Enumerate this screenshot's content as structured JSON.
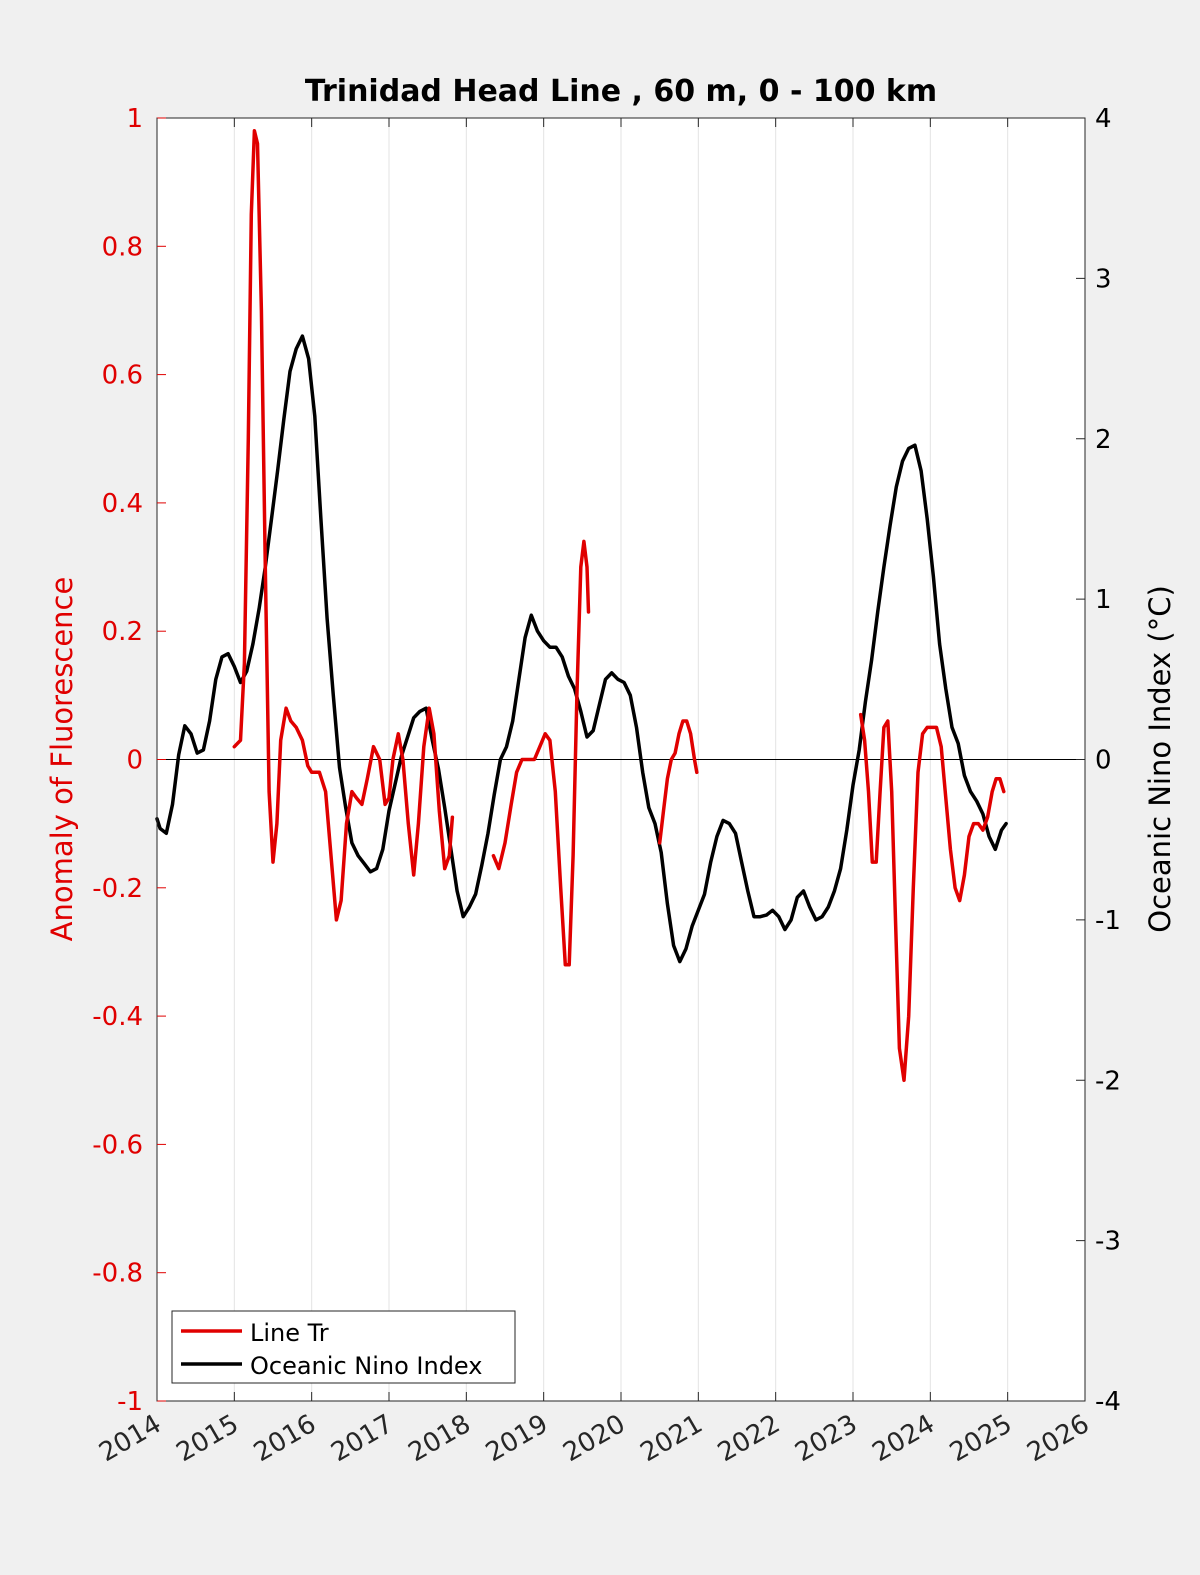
{
  "chart_data": {
    "type": "line",
    "title": "Trinidad Head Line , 60 m, 0 - 100 km",
    "ylabel_left": "Anomaly of Fluorescence",
    "ylabel_right": "Oceanic Nino Index (°C)",
    "xlim": [
      2014,
      2026
    ],
    "ylim_left": [
      -1,
      1
    ],
    "ylim_right": [
      -4,
      4
    ],
    "x_ticks": [
      "2014",
      "2015",
      "2016",
      "2017",
      "2018",
      "2019",
      "2020",
      "2021",
      "2022",
      "2023",
      "2024",
      "2025",
      "2026"
    ],
    "y_ticks_left": [
      "-1",
      "-0.8",
      "-0.6",
      "-0.4",
      "-0.2",
      "0",
      "0.2",
      "0.4",
      "0.6",
      "0.8",
      "1"
    ],
    "y_ticks_right": [
      "-4",
      "-3",
      "-2",
      "-1",
      "0",
      "1",
      "2",
      "3",
      "4"
    ],
    "x_grid": true,
    "zero_line": true,
    "legend_position": "bottom-left",
    "colors": {
      "line_tr": "#e00000",
      "oni": "#000000",
      "left_axis": "#e00000",
      "right_axis": "#000000"
    },
    "series": [
      {
        "name": "Line Tr",
        "axis": "left",
        "color": "#e00000",
        "segments": [
          [
            [
              2015.0,
              0.02
            ],
            [
              2015.08,
              0.03
            ],
            [
              2015.13,
              0.15
            ],
            [
              2015.18,
              0.5
            ],
            [
              2015.22,
              0.85
            ],
            [
              2015.26,
              0.98
            ],
            [
              2015.3,
              0.96
            ],
            [
              2015.35,
              0.7
            ],
            [
              2015.4,
              0.3
            ],
            [
              2015.45,
              -0.05
            ],
            [
              2015.5,
              -0.16
            ],
            [
              2015.55,
              -0.1
            ],
            [
              2015.6,
              0.03
            ],
            [
              2015.67,
              0.08
            ],
            [
              2015.73,
              0.06
            ],
            [
              2015.8,
              0.05
            ],
            [
              2015.88,
              0.03
            ],
            [
              2015.95,
              -0.01
            ],
            [
              2016.0,
              -0.02
            ],
            [
              2016.1,
              -0.02
            ],
            [
              2016.18,
              -0.05
            ],
            [
              2016.25,
              -0.15
            ],
            [
              2016.32,
              -0.25
            ],
            [
              2016.38,
              -0.22
            ],
            [
              2016.45,
              -0.1
            ],
            [
              2016.52,
              -0.05
            ],
            [
              2016.58,
              -0.06
            ],
            [
              2016.65,
              -0.07
            ],
            [
              2016.72,
              -0.03
            ],
            [
              2016.8,
              0.02
            ],
            [
              2016.88,
              0.0
            ],
            [
              2016.95,
              -0.07
            ],
            [
              2017.0,
              -0.06
            ],
            [
              2017.05,
              0.0
            ],
            [
              2017.12,
              0.04
            ],
            [
              2017.18,
              0.0
            ],
            [
              2017.25,
              -0.1
            ],
            [
              2017.32,
              -0.18
            ],
            [
              2017.38,
              -0.1
            ],
            [
              2017.45,
              0.02
            ],
            [
              2017.52,
              0.08
            ],
            [
              2017.58,
              0.04
            ],
            [
              2017.65,
              -0.08
            ],
            [
              2017.72,
              -0.17
            ],
            [
              2017.78,
              -0.15
            ],
            [
              2017.82,
              -0.09
            ]
          ],
          [
            [
              2018.35,
              -0.15
            ],
            [
              2018.42,
              -0.17
            ],
            [
              2018.5,
              -0.13
            ],
            [
              2018.58,
              -0.07
            ],
            [
              2018.65,
              -0.02
            ],
            [
              2018.72,
              0.0
            ],
            [
              2018.8,
              0.0
            ],
            [
              2018.88,
              0.0
            ],
            [
              2018.95,
              0.02
            ],
            [
              2019.02,
              0.04
            ],
            [
              2019.08,
              0.03
            ],
            [
              2019.15,
              -0.05
            ],
            [
              2019.22,
              -0.2
            ],
            [
              2019.28,
              -0.32
            ],
            [
              2019.33,
              -0.32
            ],
            [
              2019.38,
              -0.15
            ],
            [
              2019.43,
              0.1
            ],
            [
              2019.48,
              0.3
            ],
            [
              2019.52,
              0.34
            ],
            [
              2019.56,
              0.3
            ],
            [
              2019.58,
              0.23
            ]
          ],
          [
            [
              2020.5,
              -0.13
            ],
            [
              2020.55,
              -0.08
            ],
            [
              2020.6,
              -0.03
            ],
            [
              2020.65,
              0.0
            ],
            [
              2020.7,
              0.01
            ],
            [
              2020.75,
              0.04
            ],
            [
              2020.8,
              0.06
            ],
            [
              2020.85,
              0.06
            ],
            [
              2020.9,
              0.04
            ],
            [
              2020.95,
              0.0
            ],
            [
              2020.98,
              -0.02
            ]
          ],
          [
            [
              2023.1,
              0.07
            ],
            [
              2023.15,
              0.03
            ],
            [
              2023.2,
              -0.05
            ],
            [
              2023.25,
              -0.16
            ],
            [
              2023.3,
              -0.16
            ],
            [
              2023.35,
              -0.05
            ],
            [
              2023.4,
              0.05
            ],
            [
              2023.45,
              0.06
            ],
            [
              2023.5,
              -0.05
            ],
            [
              2023.55,
              -0.25
            ],
            [
              2023.6,
              -0.45
            ],
            [
              2023.66,
              -0.5
            ],
            [
              2023.72,
              -0.4
            ],
            [
              2023.78,
              -0.2
            ],
            [
              2023.84,
              -0.02
            ],
            [
              2023.9,
              0.04
            ],
            [
              2023.96,
              0.05
            ],
            [
              2024.02,
              0.05
            ],
            [
              2024.08,
              0.05
            ],
            [
              2024.14,
              0.02
            ],
            [
              2024.2,
              -0.06
            ],
            [
              2024.26,
              -0.14
            ],
            [
              2024.32,
              -0.2
            ],
            [
              2024.38,
              -0.22
            ],
            [
              2024.44,
              -0.18
            ],
            [
              2024.5,
              -0.12
            ],
            [
              2024.56,
              -0.1
            ],
            [
              2024.62,
              -0.1
            ],
            [
              2024.68,
              -0.11
            ],
            [
              2024.74,
              -0.09
            ],
            [
              2024.8,
              -0.05
            ],
            [
              2024.85,
              -0.03
            ],
            [
              2024.9,
              -0.03
            ],
            [
              2024.95,
              -0.05
            ]
          ]
        ]
      },
      {
        "name": "Oceanic Nino Index",
        "axis": "right",
        "color": "#000000",
        "segments": [
          [
            [
              2014.0,
              -0.37
            ],
            [
              2014.04,
              -0.43
            ],
            [
              2014.12,
              -0.46
            ],
            [
              2014.2,
              -0.28
            ],
            [
              2014.28,
              0.03
            ],
            [
              2014.36,
              0.21
            ],
            [
              2014.44,
              0.16
            ],
            [
              2014.52,
              0.04
            ],
            [
              2014.6,
              0.06
            ],
            [
              2014.68,
              0.24
            ],
            [
              2014.76,
              0.5
            ],
            [
              2014.84,
              0.64
            ],
            [
              2014.92,
              0.66
            ],
            [
              2015.0,
              0.58
            ],
            [
              2015.08,
              0.48
            ],
            [
              2015.16,
              0.55
            ],
            [
              2015.24,
              0.72
            ],
            [
              2015.32,
              0.94
            ],
            [
              2015.4,
              1.2
            ],
            [
              2015.48,
              1.5
            ],
            [
              2015.56,
              1.8
            ],
            [
              2015.64,
              2.12
            ],
            [
              2015.72,
              2.42
            ],
            [
              2015.8,
              2.56
            ],
            [
              2015.88,
              2.64
            ],
            [
              2015.96,
              2.5
            ],
            [
              2016.04,
              2.14
            ],
            [
              2016.12,
              1.5
            ],
            [
              2016.2,
              0.88
            ],
            [
              2016.28,
              0.4
            ],
            [
              2016.36,
              -0.05
            ],
            [
              2016.44,
              -0.3
            ],
            [
              2016.52,
              -0.52
            ],
            [
              2016.6,
              -0.6
            ],
            [
              2016.68,
              -0.65
            ],
            [
              2016.76,
              -0.7
            ],
            [
              2016.84,
              -0.68
            ],
            [
              2016.92,
              -0.56
            ],
            [
              2017.0,
              -0.32
            ],
            [
              2017.08,
              -0.15
            ],
            [
              2017.16,
              0.02
            ],
            [
              2017.24,
              0.14
            ],
            [
              2017.32,
              0.26
            ],
            [
              2017.4,
              0.3
            ],
            [
              2017.48,
              0.32
            ],
            [
              2017.56,
              0.12
            ],
            [
              2017.64,
              -0.06
            ],
            [
              2017.72,
              -0.3
            ],
            [
              2017.8,
              -0.56
            ],
            [
              2017.88,
              -0.82
            ],
            [
              2017.96,
              -0.98
            ],
            [
              2018.04,
              -0.92
            ],
            [
              2018.12,
              -0.84
            ],
            [
              2018.2,
              -0.66
            ],
            [
              2018.28,
              -0.46
            ],
            [
              2018.36,
              -0.22
            ],
            [
              2018.44,
              0.0
            ],
            [
              2018.52,
              0.08
            ],
            [
              2018.6,
              0.24
            ],
            [
              2018.68,
              0.5
            ],
            [
              2018.76,
              0.76
            ],
            [
              2018.84,
              0.9
            ],
            [
              2018.92,
              0.8
            ],
            [
              2019.0,
              0.74
            ],
            [
              2019.08,
              0.7
            ],
            [
              2019.16,
              0.7
            ],
            [
              2019.24,
              0.64
            ],
            [
              2019.32,
              0.52
            ],
            [
              2019.4,
              0.44
            ],
            [
              2019.48,
              0.3
            ],
            [
              2019.56,
              0.14
            ],
            [
              2019.64,
              0.18
            ],
            [
              2019.72,
              0.34
            ],
            [
              2019.8,
              0.5
            ],
            [
              2019.88,
              0.54
            ],
            [
              2019.96,
              0.5
            ],
            [
              2020.04,
              0.48
            ],
            [
              2020.12,
              0.4
            ],
            [
              2020.2,
              0.2
            ],
            [
              2020.28,
              -0.08
            ],
            [
              2020.36,
              -0.3
            ],
            [
              2020.44,
              -0.4
            ],
            [
              2020.52,
              -0.58
            ],
            [
              2020.6,
              -0.9
            ],
            [
              2020.68,
              -1.16
            ],
            [
              2020.76,
              -1.26
            ],
            [
              2020.84,
              -1.18
            ],
            [
              2020.92,
              -1.04
            ],
            [
              2021.0,
              -0.94
            ],
            [
              2021.08,
              -0.84
            ],
            [
              2021.16,
              -0.64
            ],
            [
              2021.24,
              -0.48
            ],
            [
              2021.32,
              -0.38
            ],
            [
              2021.4,
              -0.4
            ],
            [
              2021.48,
              -0.46
            ],
            [
              2021.56,
              -0.64
            ],
            [
              2021.64,
              -0.82
            ],
            [
              2021.72,
              -0.98
            ],
            [
              2021.8,
              -0.98
            ],
            [
              2021.88,
              -0.97
            ],
            [
              2021.96,
              -0.94
            ],
            [
              2022.04,
              -0.98
            ],
            [
              2022.12,
              -1.06
            ],
            [
              2022.2,
              -1.0
            ],
            [
              2022.28,
              -0.86
            ],
            [
              2022.36,
              -0.82
            ],
            [
              2022.44,
              -0.92
            ],
            [
              2022.52,
              -1.0
            ],
            [
              2022.6,
              -0.98
            ],
            [
              2022.68,
              -0.92
            ],
            [
              2022.76,
              -0.82
            ],
            [
              2022.84,
              -0.68
            ],
            [
              2022.92,
              -0.44
            ],
            [
              2023.0,
              -0.16
            ],
            [
              2023.08,
              0.06
            ],
            [
              2023.16,
              0.36
            ],
            [
              2023.24,
              0.62
            ],
            [
              2023.32,
              0.92
            ],
            [
              2023.4,
              1.2
            ],
            [
              2023.48,
              1.46
            ],
            [
              2023.56,
              1.7
            ],
            [
              2023.64,
              1.86
            ],
            [
              2023.72,
              1.94
            ],
            [
              2023.8,
              1.96
            ],
            [
              2023.88,
              1.8
            ],
            [
              2023.96,
              1.5
            ],
            [
              2024.04,
              1.14
            ],
            [
              2024.12,
              0.72
            ],
            [
              2024.2,
              0.44
            ],
            [
              2024.28,
              0.2
            ],
            [
              2024.36,
              0.1
            ],
            [
              2024.44,
              -0.1
            ],
            [
              2024.52,
              -0.2
            ],
            [
              2024.6,
              -0.26
            ],
            [
              2024.68,
              -0.34
            ],
            [
              2024.76,
              -0.48
            ],
            [
              2024.84,
              -0.56
            ],
            [
              2024.92,
              -0.44
            ],
            [
              2024.98,
              -0.4
            ]
          ]
        ]
      }
    ]
  }
}
